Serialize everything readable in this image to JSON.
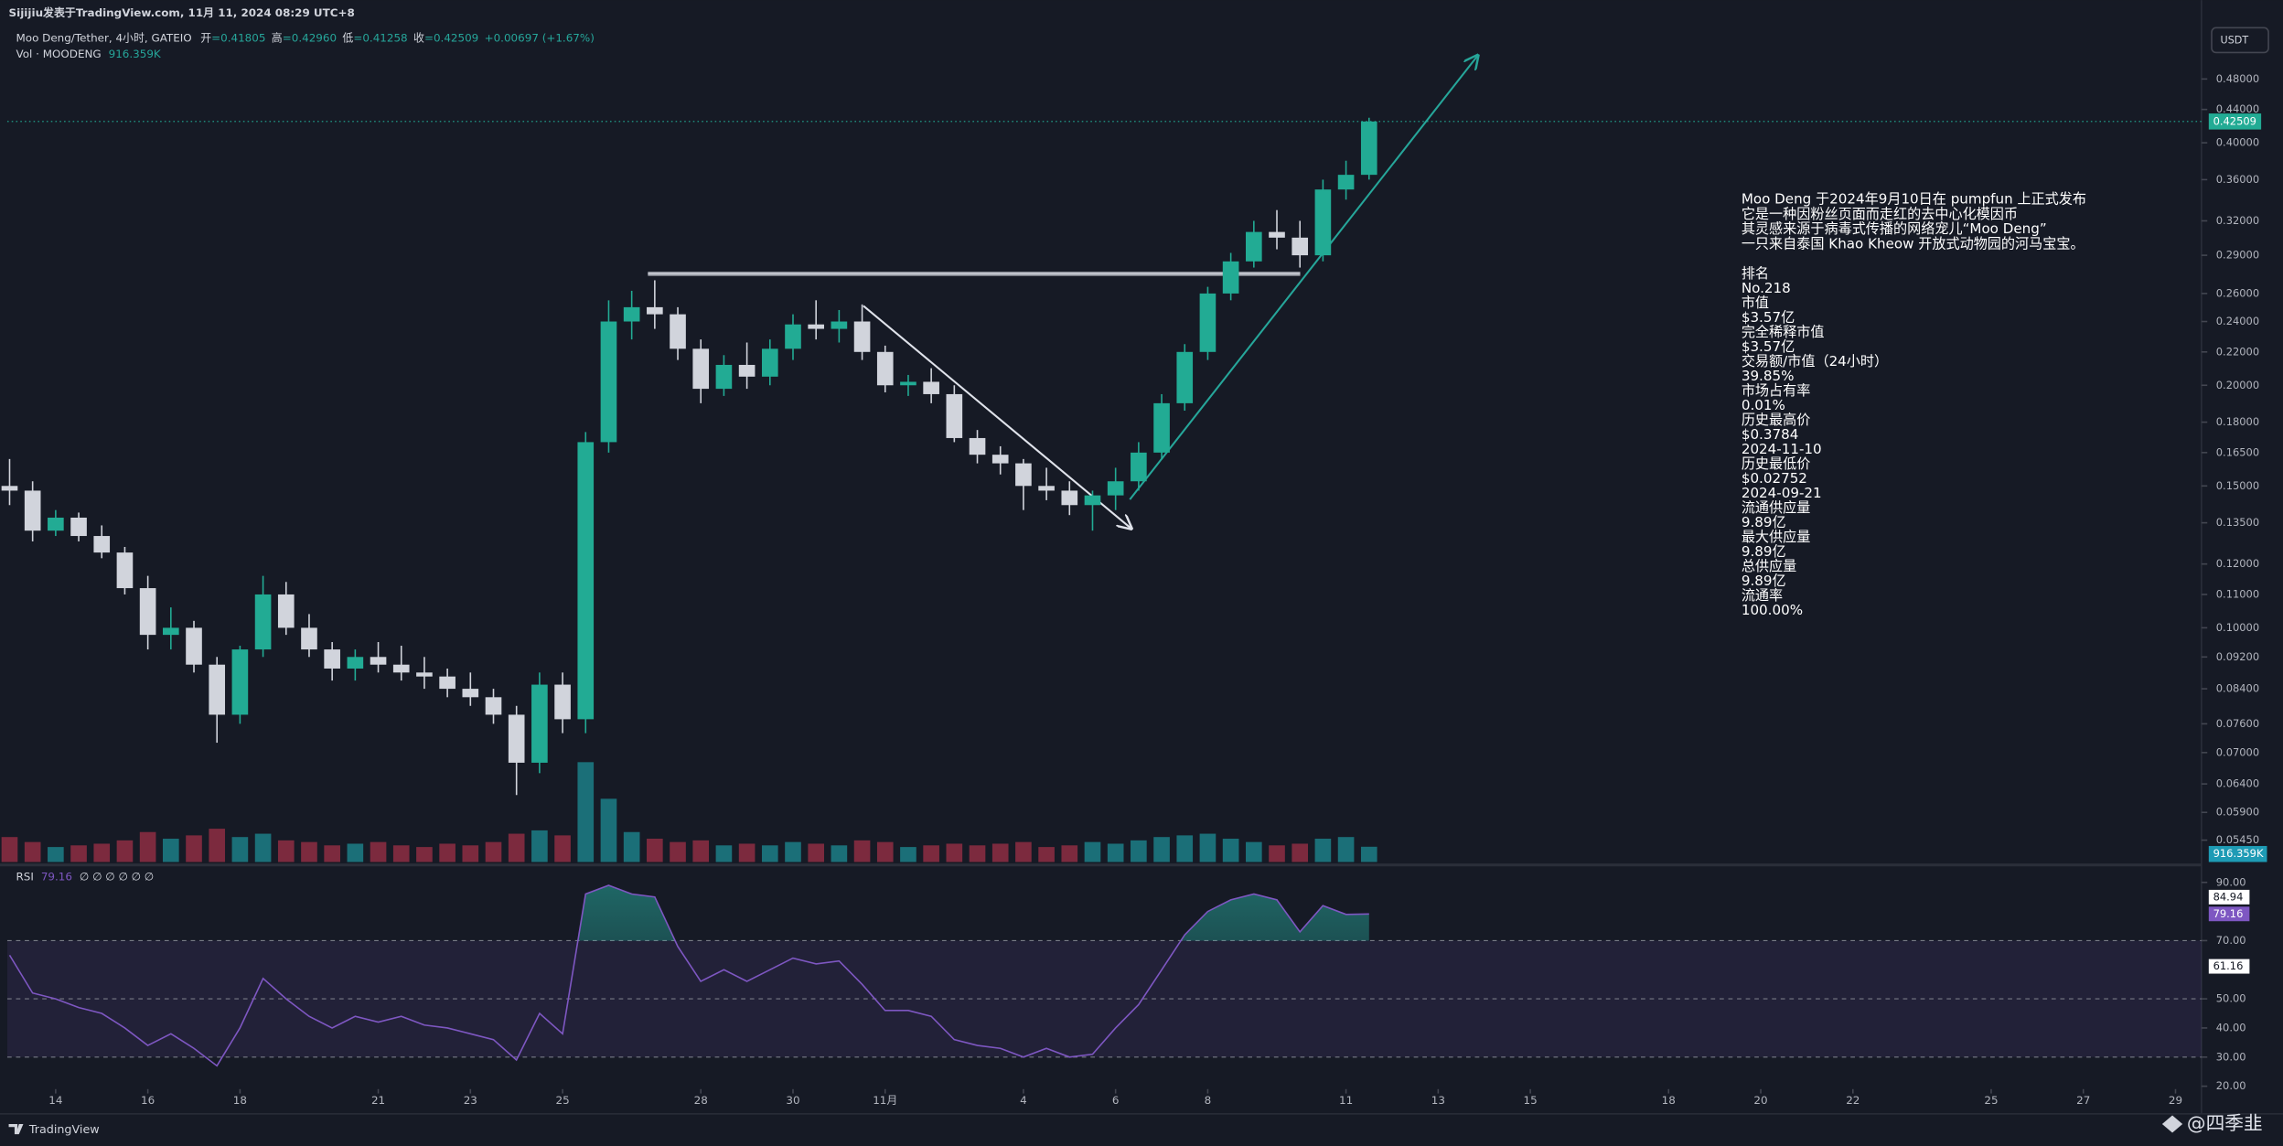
{
  "header": {
    "publisher": "Sijijiu发表于TradingView.com,  11月 11, 2024 08:29 UTC+8",
    "symbol": "Moo Deng/Tether, 4小时, GATEIO",
    "ohlc": [
      {
        "label": "开",
        "value": "=0.41805"
      },
      {
        "label": "高",
        "value": "=0.42960"
      },
      {
        "label": "低",
        "value": "=0.41258"
      },
      {
        "label": "收",
        "value": "=0.42509"
      }
    ],
    "change": "+0.00697 (+1.67%)",
    "volume_name": "Vol · MOODENG",
    "volume_value": "916.359K",
    "currency": "USDT",
    "rsi_name": "RSI",
    "rsi_params": "∅ ∅ ∅ ∅ ∅ ∅"
  },
  "chart_data": [
    {
      "type": "candlestick",
      "log_scale": true,
      "up_color": "#22ab94",
      "down_color": "#d1d4dc",
      "x": [
        -1,
        -0.5,
        0,
        0.5,
        1,
        1.5,
        2,
        2.5,
        3,
        3.5,
        4,
        4.5,
        5,
        5.5,
        6,
        6.5,
        7,
        7.5,
        8,
        8.5,
        9,
        9.5,
        10,
        10.5,
        11,
        11.5,
        12,
        12.5,
        13,
        13.5,
        14,
        14.5,
        15,
        15.5,
        16,
        16.5,
        17,
        17.5,
        18,
        18.5,
        19,
        19.5,
        20,
        20.5,
        21,
        21.5,
        22,
        22.5,
        23,
        23.5,
        24,
        24.5,
        25,
        25.5,
        26,
        26.5,
        27,
        27.5,
        28,
        28.5
      ],
      "open": [
        0.15,
        0.148,
        0.132,
        0.137,
        0.13,
        0.124,
        0.112,
        0.098,
        0.1,
        0.09,
        0.078,
        0.094,
        0.11,
        0.1,
        0.094,
        0.089,
        0.092,
        0.09,
        0.088,
        0.087,
        0.084,
        0.082,
        0.078,
        0.068,
        0.085,
        0.077,
        0.17,
        0.24,
        0.25,
        0.245,
        0.222,
        0.198,
        0.212,
        0.205,
        0.222,
        0.238,
        0.235,
        0.24,
        0.22,
        0.2,
        0.202,
        0.195,
        0.172,
        0.164,
        0.16,
        0.15,
        0.148,
        0.142,
        0.146,
        0.152,
        0.165,
        0.19,
        0.22,
        0.26,
        0.285,
        0.31,
        0.305,
        0.29,
        0.35,
        0.365
      ],
      "high": [
        0.162,
        0.152,
        0.14,
        0.139,
        0.134,
        0.126,
        0.116,
        0.106,
        0.102,
        0.092,
        0.095,
        0.116,
        0.114,
        0.104,
        0.096,
        0.094,
        0.096,
        0.095,
        0.092,
        0.089,
        0.088,
        0.084,
        0.08,
        0.088,
        0.088,
        0.175,
        0.255,
        0.262,
        0.27,
        0.25,
        0.228,
        0.218,
        0.226,
        0.228,
        0.245,
        0.255,
        0.248,
        0.252,
        0.224,
        0.206,
        0.21,
        0.2,
        0.176,
        0.168,
        0.162,
        0.158,
        0.152,
        0.148,
        0.158,
        0.17,
        0.195,
        0.225,
        0.265,
        0.292,
        0.32,
        0.33,
        0.32,
        0.36,
        0.38,
        0.4296
      ],
      "low": [
        0.142,
        0.128,
        0.13,
        0.128,
        0.122,
        0.11,
        0.094,
        0.094,
        0.088,
        0.072,
        0.076,
        0.092,
        0.098,
        0.092,
        0.086,
        0.086,
        0.088,
        0.086,
        0.084,
        0.082,
        0.08,
        0.076,
        0.062,
        0.066,
        0.074,
        0.074,
        0.165,
        0.228,
        0.235,
        0.215,
        0.19,
        0.194,
        0.198,
        0.2,
        0.215,
        0.228,
        0.226,
        0.215,
        0.196,
        0.194,
        0.19,
        0.17,
        0.16,
        0.155,
        0.14,
        0.144,
        0.138,
        0.132,
        0.14,
        0.148,
        0.162,
        0.186,
        0.215,
        0.255,
        0.28,
        0.295,
        0.28,
        0.285,
        0.34,
        0.36
      ],
      "close": [
        0.148,
        0.132,
        0.137,
        0.13,
        0.124,
        0.112,
        0.098,
        0.1,
        0.09,
        0.078,
        0.094,
        0.11,
        0.1,
        0.094,
        0.089,
        0.092,
        0.09,
        0.088,
        0.087,
        0.084,
        0.082,
        0.078,
        0.068,
        0.085,
        0.077,
        0.17,
        0.24,
        0.25,
        0.245,
        0.222,
        0.198,
        0.212,
        0.205,
        0.222,
        0.238,
        0.235,
        0.24,
        0.22,
        0.2,
        0.202,
        0.195,
        0.172,
        0.164,
        0.16,
        0.15,
        0.148,
        0.142,
        0.146,
        0.152,
        0.165,
        0.19,
        0.22,
        0.26,
        0.285,
        0.31,
        0.305,
        0.29,
        0.35,
        0.365,
        0.42509
      ],
      "last_price": {
        "value": 0.42509,
        "label": "0.42509"
      },
      "ylim": [
        0.0512,
        0.558
      ],
      "yticks": [
        {
          "value": 0.48,
          "label": "0.48000"
        },
        {
          "value": 0.44,
          "label": "0.44000"
        },
        {
          "value": 0.4,
          "label": "0.40000"
        },
        {
          "value": 0.36,
          "label": "0.36000"
        },
        {
          "value": 0.32,
          "label": "0.32000"
        },
        {
          "value": 0.29,
          "label": "0.29000"
        },
        {
          "value": 0.26,
          "label": "0.26000"
        },
        {
          "value": 0.24,
          "label": "0.24000"
        },
        {
          "value": 0.22,
          "label": "0.22000"
        },
        {
          "value": 0.2,
          "label": "0.20000"
        },
        {
          "value": 0.18,
          "label": "0.18000"
        },
        {
          "value": 0.165,
          "label": "0.16500"
        },
        {
          "value": 0.15,
          "label": "0.15000"
        },
        {
          "value": 0.135,
          "label": "0.13500"
        },
        {
          "value": 0.12,
          "label": "0.12000"
        },
        {
          "value": 0.11,
          "label": "0.11000"
        },
        {
          "value": 0.1,
          "label": "0.10000"
        },
        {
          "value": 0.092,
          "label": "0.09200"
        },
        {
          "value": 0.084,
          "label": "0.08400"
        },
        {
          "value": 0.076,
          "label": "0.07600"
        },
        {
          "value": 0.07,
          "label": "0.07000"
        },
        {
          "value": 0.064,
          "label": "0.06400"
        },
        {
          "value": 0.059,
          "label": "0.05900"
        },
        {
          "value": 0.0545,
          "label": "0.05450"
        }
      ],
      "xlim": [
        -1.05,
        46.5
      ],
      "xticks": [
        {
          "value": 0,
          "label": "14"
        },
        {
          "value": 2,
          "label": "16"
        },
        {
          "value": 4,
          "label": "18"
        },
        {
          "value": 7,
          "label": "21"
        },
        {
          "value": 9,
          "label": "23"
        },
        {
          "value": 11,
          "label": "25"
        },
        {
          "value": 14,
          "label": "28"
        },
        {
          "value": 16,
          "label": "30"
        },
        {
          "value": 18,
          "label": "11月"
        },
        {
          "value": 21,
          "label": "4"
        },
        {
          "value": 23,
          "label": "6"
        },
        {
          "value": 25,
          "label": "8"
        },
        {
          "value": 28,
          "label": "11"
        },
        {
          "value": 30,
          "label": "13"
        },
        {
          "value": 32,
          "label": "15"
        },
        {
          "value": 35,
          "label": "18"
        },
        {
          "value": 37,
          "label": "20"
        },
        {
          "value": 39,
          "label": "22"
        },
        {
          "value": 42,
          "label": "25"
        },
        {
          "value": 44,
          "label": "27"
        },
        {
          "value": 46,
          "label": "29"
        }
      ]
    },
    {
      "type": "bar",
      "up_color": "#1b6f78",
      "down_color": "#7c2a3e",
      "values": [
        1500,
        1200,
        900,
        1000,
        1100,
        1300,
        1800,
        1400,
        1600,
        2000,
        1500,
        1700,
        1300,
        1200,
        1000,
        1100,
        1200,
        1000,
        900,
        1100,
        1000,
        1200,
        1700,
        1900,
        1600,
        6000,
        3800,
        1800,
        1400,
        1200,
        1300,
        1000,
        1100,
        1000,
        1200,
        1100,
        1000,
        1300,
        1200,
        900,
        1000,
        1100,
        1000,
        1100,
        1200,
        900,
        1000,
        1200,
        1100,
        1300,
        1500,
        1600,
        1700,
        1400,
        1200,
        1000,
        1100,
        1400,
        1500,
        916.359
      ],
      "ylim": [
        0,
        7000
      ]
    },
    {
      "type": "line",
      "name": "RSI",
      "color": "#7e57c2",
      "values": [
        65,
        52,
        50,
        47,
        45,
        40,
        34,
        38,
        33,
        27,
        40,
        57,
        50,
        44,
        40,
        44,
        42,
        44,
        41,
        40,
        38,
        36,
        29,
        45,
        38,
        86,
        89,
        86,
        85,
        68,
        56,
        60,
        56,
        60,
        64,
        62,
        63,
        55,
        46,
        46,
        44,
        36,
        34,
        33,
        30,
        33,
        30,
        31,
        40,
        48,
        60,
        72,
        80,
        84,
        86,
        84,
        73,
        82,
        79,
        79.16
      ],
      "band": [
        30,
        70
      ],
      "midline": 50,
      "ylim": [
        19,
        94
      ],
      "yticks": [
        {
          "value": 90,
          "label": "90.00"
        },
        {
          "value": 70,
          "label": "70.00"
        },
        {
          "value": 50,
          "label": "50.00"
        },
        {
          "value": 40,
          "label": "40.00"
        },
        {
          "value": 30,
          "label": "30.00"
        },
        {
          "value": 20,
          "label": "20.00"
        }
      ],
      "axis_labels": [
        84.94,
        61.16
      ]
    }
  ],
  "info": {
    "description": [
      "Moo Deng 于2024年9月10日在 pumpfun 上正式发布",
      "它是一种因粉丝页面而走红的去中心化模因币",
      "其灵感来源于病毒式传播的网络宠儿“Moo Deng”",
      "一只来自泰国 Khao Kheow 开放式动物园的河马宝宝。"
    ],
    "stats": [
      "排名",
      "No.218",
      "市值",
      "$3.57亿",
      "完全稀释市值",
      "$3.57亿",
      "交易额/市值（24小时）",
      "39.85%",
      "市场占有率",
      "0.01%",
      "历史最高价",
      "$0.3784",
      "2024-11-10",
      "历史最低价",
      "$0.02752",
      "2024-09-21",
      "流通供应量",
      "9.89亿",
      "最大供应量",
      "9.89亿",
      "总供应量",
      "9.89亿",
      "流通率",
      "100.00%"
    ]
  },
  "footer": {
    "brand": "TradingView",
    "watermark": "@四季韭"
  }
}
